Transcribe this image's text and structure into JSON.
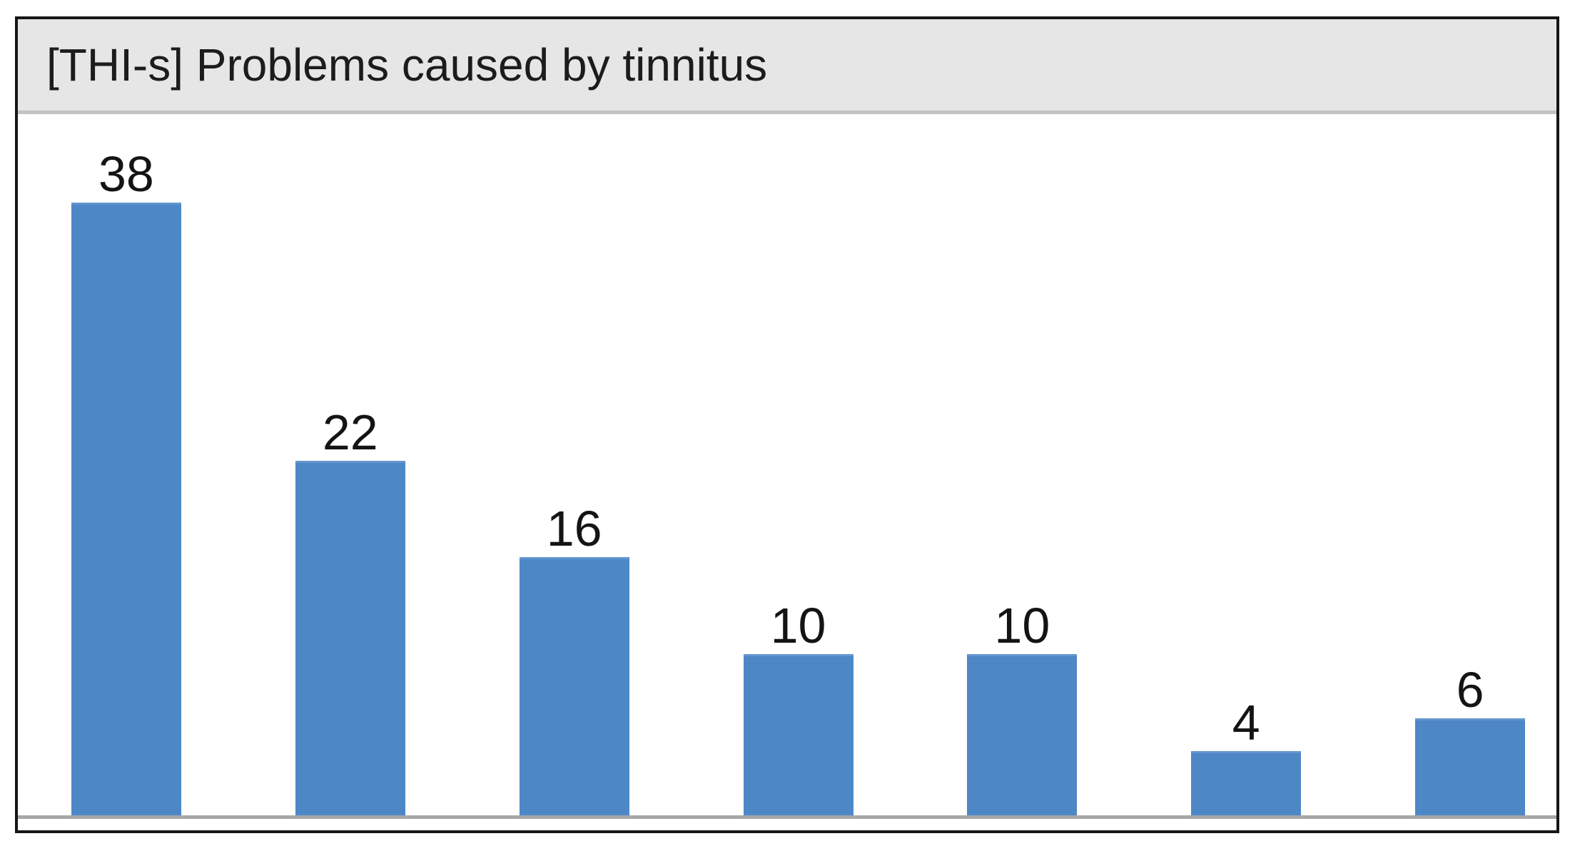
{
  "header": {
    "title": "[THI-s] Problems caused by tinnitus",
    "background_color": "#e6e6e6"
  },
  "chart_data": {
    "type": "bar",
    "title": "[THI-s] Problems caused by tinnitus",
    "values": [
      38,
      22,
      16,
      10,
      10,
      4,
      6
    ],
    "value_labels": [
      "38",
      "22",
      "16",
      "10",
      "10",
      "4",
      "6"
    ],
    "categories": [
      "",
      "",
      "",
      "",
      "",
      "",
      ""
    ],
    "xlabel": "",
    "ylabel": "",
    "ylim": [
      0,
      43
    ],
    "grid": false,
    "legend": false,
    "value_labels_position": "above-bars",
    "bar_color": "#4d87c6",
    "axis_line_color": "#a6a6a6",
    "panel_border_color": "#161616",
    "label_text_color": "#141414"
  }
}
